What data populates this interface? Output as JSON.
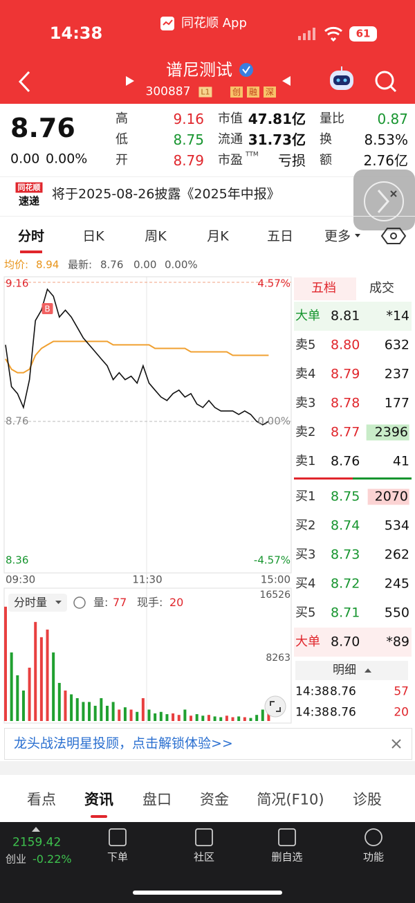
{
  "status": {
    "time": "14:38",
    "app": "同花顺 App",
    "battery": "61"
  },
  "header": {
    "title": "谱尼测试",
    "code": "300887",
    "level": "L1",
    "tags": [
      "创",
      "融",
      "深"
    ]
  },
  "quote": {
    "price": "8.76",
    "change": "0.00",
    "change_pct": "0.00%",
    "stats": [
      {
        "label": "高",
        "value": "9.16"
      },
      {
        "label": "低",
        "value": "8.75"
      },
      {
        "label": "开",
        "value": "8.79"
      },
      {
        "label": "市值",
        "value": "47.81亿"
      },
      {
        "label": "流通",
        "value": "31.73亿"
      },
      {
        "label": "市盈",
        "sup": "TTM",
        "value": "亏损"
      },
      {
        "label": "量比",
        "value": "0.87"
      },
      {
        "label": "换",
        "value": "8.53%"
      },
      {
        "label": "额",
        "value": "2.76亿"
      }
    ]
  },
  "notice": {
    "badge_top": "同花顺",
    "badge_bottom": "速递",
    "text": "将于2025-08-26披露《2025年中报》"
  },
  "tabs": [
    "分时",
    "日K",
    "周K",
    "月K",
    "五日",
    "更多"
  ],
  "chart_info": {
    "avg_label": "均价:",
    "avg": "8.94",
    "latest_label": "最新:",
    "latest": "8.76",
    "change": "0.00",
    "change_pct": "0.00%"
  },
  "intraday": {
    "ylim": [
      8.36,
      9.16
    ],
    "yticks": [
      9.16,
      8.76,
      8.36
    ],
    "pct_ticks": [
      "4.57%",
      "0.00%",
      "-4.57%"
    ],
    "xticks": [
      "09:30",
      "11:30",
      "15:00"
    ],
    "buy_marker": "B",
    "price": [
      8.98,
      8.86,
      8.84,
      8.8,
      8.88,
      9.05,
      9.08,
      9.14,
      9.12,
      9.06,
      9.08,
      9.06,
      9.03,
      9.0,
      8.98,
      8.96,
      8.94,
      8.92,
      8.88,
      8.9,
      8.88,
      8.89,
      8.87,
      8.92,
      8.87,
      8.85,
      8.83,
      8.82,
      8.84,
      8.85,
      8.83,
      8.84,
      8.81,
      8.8,
      8.82,
      8.8,
      8.79,
      8.79,
      8.79,
      8.78,
      8.79,
      8.78,
      8.76,
      8.75,
      8.76
    ],
    "avg": [
      8.94,
      8.91,
      8.9,
      8.9,
      8.91,
      8.95,
      8.97,
      8.98,
      8.99,
      8.99,
      8.99,
      8.99,
      8.99,
      8.99,
      8.99,
      8.99,
      8.99,
      8.99,
      8.98,
      8.98,
      8.98,
      8.98,
      8.98,
      8.98,
      8.98,
      8.97,
      8.97,
      8.97,
      8.97,
      8.97,
      8.97,
      8.96,
      8.96,
      8.96,
      8.96,
      8.96,
      8.96,
      8.96,
      8.95,
      8.95,
      8.95,
      8.95,
      8.95,
      8.95,
      8.95
    ],
    "volume": [
      15000,
      9000,
      6000,
      4000,
      7000,
      13000,
      11000,
      12000,
      9000,
      5000,
      4000,
      3500,
      3000,
      2500,
      2500,
      2000,
      3000,
      2000,
      2500,
      1500,
      1800,
      1500,
      1200,
      3000,
      1500,
      1000,
      1200,
      900,
      1000,
      800,
      1500,
      700,
      900,
      700,
      800,
      600,
      500,
      700,
      500,
      600,
      500,
      400,
      800,
      1500,
      1200
    ],
    "volume_ylim": [
      0,
      16526
    ],
    "volume_ticks": [
      16526,
      8263
    ]
  },
  "volume_info": {
    "label": "分时量",
    "vol_label": "量:",
    "vol": "77",
    "hand_label": "现手:",
    "hand": "20"
  },
  "order_book": {
    "tabs": [
      "五档",
      "成交"
    ],
    "rows": [
      {
        "label": "大单",
        "price": "8.81",
        "volume": "*14"
      },
      {
        "label": "卖5",
        "price": "8.80",
        "volume": "632"
      },
      {
        "label": "卖4",
        "price": "8.79",
        "volume": "237"
      },
      {
        "label": "卖3",
        "price": "8.78",
        "volume": "177"
      },
      {
        "label": "卖2",
        "price": "8.77",
        "volume": "2396"
      },
      {
        "label": "卖1",
        "price": "8.76",
        "volume": "41"
      },
      {
        "label": "买1",
        "price": "8.75",
        "volume": "2070"
      },
      {
        "label": "买2",
        "price": "8.74",
        "volume": "534"
      },
      {
        "label": "买3",
        "price": "8.73",
        "volume": "262"
      },
      {
        "label": "买4",
        "price": "8.72",
        "volume": "245"
      },
      {
        "label": "买5",
        "price": "8.71",
        "volume": "550"
      },
      {
        "label": "大单",
        "price": "8.70",
        "volume": "*89"
      }
    ]
  },
  "detail": {
    "title": "明细",
    "trades": [
      {
        "time": "14:38",
        "price": "8.76",
        "volume": "57"
      },
      {
        "time": "14:38",
        "price": "8.76",
        "volume": "20"
      }
    ]
  },
  "banner": {
    "text": "龙头战法明星投顾，点击解锁体验>>"
  },
  "section_tabs": [
    "看点",
    "资讯",
    "盘口",
    "资金",
    "简况(F10)",
    "诊股"
  ],
  "bottom_nav": {
    "index_value": "2159.42",
    "index_name": "创业",
    "index_change": "-0.22%",
    "items": [
      "下单",
      "社区",
      "删自选",
      "功能"
    ]
  }
}
